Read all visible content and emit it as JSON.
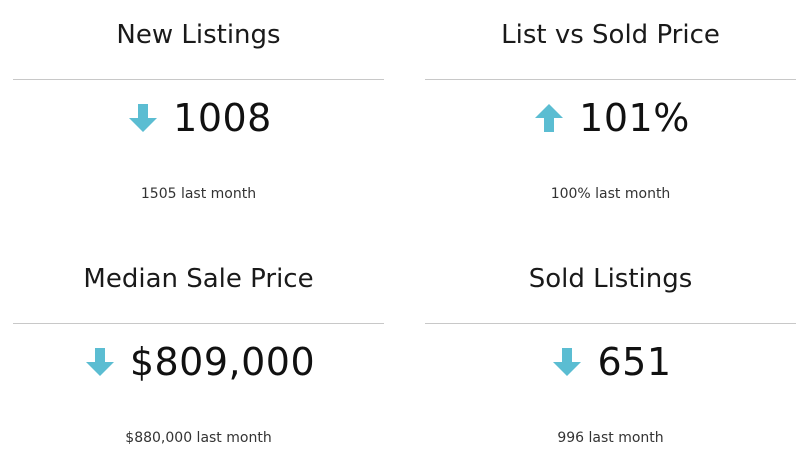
{
  "accent_color": "#5bbdd2",
  "cards": [
    {
      "title": "New Listings",
      "value": "1008",
      "trend": "down",
      "trend_icon": "arrow-down-icon",
      "previous": "1505 last month"
    },
    {
      "title": "List vs Sold Price",
      "value": "101%",
      "trend": "up",
      "trend_icon": "arrow-up-icon",
      "previous": "100% last month"
    },
    {
      "title": "Median Sale Price",
      "value": "$809,000",
      "trend": "down",
      "trend_icon": "arrow-down-icon",
      "previous": "$880,000 last month"
    },
    {
      "title": "Sold Listings",
      "value": "651",
      "trend": "down",
      "trend_icon": "arrow-down-icon",
      "previous": "996 last month"
    }
  ]
}
